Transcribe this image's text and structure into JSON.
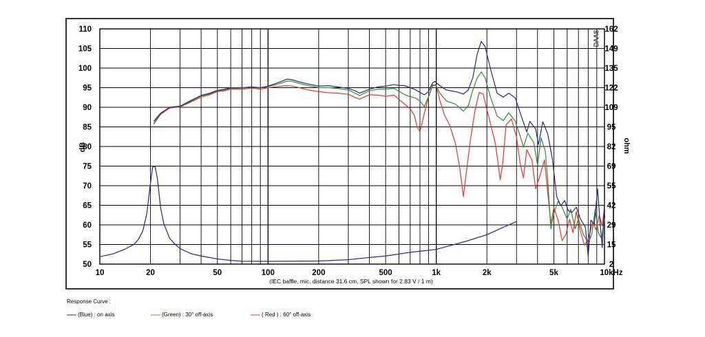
{
  "chart_data": {
    "type": "line",
    "title": "",
    "xlabel": "",
    "x_unit_label": "10kHz",
    "ylabel_left": "dB",
    "ylabel_right": "ohm",
    "caption": "(IEC baffle, mic. distance 31.6 cm, SPL shown for 2.83 V / 1 m)",
    "watermark": "DAAS",
    "x_scale": "log",
    "xlim": [
      10,
      10000
    ],
    "ylim_left": [
      50,
      110
    ],
    "ylim_right": [
      2,
      162
    ],
    "grid": true,
    "x_ticks": [
      {
        "value": 10,
        "label": "10"
      },
      {
        "value": 20,
        "label": "20"
      },
      {
        "value": 50,
        "label": "50"
      },
      {
        "value": 100,
        "label": "100"
      },
      {
        "value": 200,
        "label": "200"
      },
      {
        "value": 500,
        "label": "500"
      },
      {
        "value": 1000,
        "label": "1k"
      },
      {
        "value": 2000,
        "label": "2k"
      },
      {
        "value": 5000,
        "label": "5k"
      },
      {
        "value": 10000,
        "label": "10kHz"
      }
    ],
    "y_ticks_left": [
      50,
      55,
      60,
      65,
      70,
      75,
      80,
      85,
      90,
      95,
      100,
      105,
      110
    ],
    "y_ticks_right": [
      "2",
      "15",
      "29",
      "42",
      "55",
      "69",
      "82",
      "95",
      "109",
      "122",
      "135",
      "149",
      "162"
    ],
    "series": [
      {
        "name": "Blue",
        "color": "#2b2f7a",
        "points": [
          [
            21,
            86.5
          ],
          [
            23,
            88.5
          ],
          [
            26,
            90
          ],
          [
            30,
            90.3
          ],
          [
            35,
            91.8
          ],
          [
            40,
            93
          ],
          [
            45,
            93.6
          ],
          [
            50,
            94.3
          ],
          [
            55,
            94.6
          ],
          [
            60,
            95
          ],
          [
            70,
            95
          ],
          [
            80,
            95.2
          ],
          [
            90,
            95
          ],
          [
            100,
            95.4
          ],
          [
            110,
            96
          ],
          [
            120,
            96.6
          ],
          [
            130,
            97.2
          ],
          [
            140,
            97
          ],
          [
            150,
            96.6
          ],
          [
            170,
            96
          ],
          [
            200,
            95.4
          ],
          [
            230,
            95.5
          ],
          [
            260,
            95.2
          ],
          [
            300,
            94.8
          ],
          [
            330,
            94.2
          ],
          [
            350,
            93.6
          ],
          [
            400,
            94.6
          ],
          [
            450,
            95.2
          ],
          [
            500,
            95.4
          ],
          [
            560,
            95.8
          ],
          [
            600,
            95.6
          ],
          [
            650,
            95.5
          ],
          [
            700,
            95
          ],
          [
            750,
            94.5
          ],
          [
            800,
            93.8
          ],
          [
            850,
            93.2
          ],
          [
            900,
            94
          ],
          [
            950,
            96.2
          ],
          [
            980,
            96.6
          ],
          [
            1050,
            95.5
          ],
          [
            1150,
            94.4
          ],
          [
            1300,
            94
          ],
          [
            1450,
            93.4
          ],
          [
            1550,
            94.4
          ],
          [
            1650,
            97.6
          ],
          [
            1750,
            103.5
          ],
          [
            1850,
            106.8
          ],
          [
            1950,
            105.5
          ],
          [
            2100,
            99.8
          ],
          [
            2300,
            93.6
          ],
          [
            2500,
            92.6
          ],
          [
            2700,
            93.6
          ],
          [
            2950,
            92.4
          ],
          [
            3200,
            87.8
          ],
          [
            3450,
            83.7
          ],
          [
            3600,
            86.4
          ],
          [
            3900,
            84.5
          ],
          [
            4050,
            80.5
          ],
          [
            4300,
            86.3
          ],
          [
            4600,
            83.2
          ],
          [
            4900,
            76.8
          ],
          [
            5200,
            67.2
          ],
          [
            5500,
            64.9
          ],
          [
            5800,
            66.2
          ],
          [
            6100,
            63.6
          ],
          [
            6400,
            63.2
          ],
          [
            6800,
            64.5
          ],
          [
            7200,
            61.5
          ],
          [
            7700,
            59.4
          ],
          [
            8000,
            52
          ],
          [
            8300,
            61.2
          ],
          [
            8700,
            60.2
          ],
          [
            9100,
            69.2
          ],
          [
            9400,
            61
          ],
          [
            9700,
            54.2
          ],
          [
            10000,
            66
          ]
        ]
      },
      {
        "name": "Green",
        "color": "#3d8a3a",
        "points": [
          [
            21,
            86
          ],
          [
            23,
            88.4
          ],
          [
            26,
            90
          ],
          [
            30,
            90.2
          ],
          [
            35,
            91.6
          ],
          [
            40,
            92.9
          ],
          [
            45,
            93.4
          ],
          [
            50,
            94.2
          ],
          [
            55,
            94.4
          ],
          [
            60,
            94.8
          ],
          [
            70,
            94.9
          ],
          [
            80,
            95.1
          ],
          [
            90,
            94.9
          ],
          [
            100,
            95.3
          ],
          [
            110,
            95.7
          ],
          [
            120,
            96.2
          ],
          [
            130,
            96.7
          ],
          [
            140,
            96.6
          ],
          [
            150,
            96.2
          ],
          [
            170,
            95.6
          ],
          [
            200,
            95
          ],
          [
            230,
            95
          ],
          [
            260,
            94.8
          ],
          [
            300,
            94.4
          ],
          [
            330,
            93.6
          ],
          [
            350,
            93
          ],
          [
            400,
            94.2
          ],
          [
            450,
            94.6
          ],
          [
            500,
            94.6
          ],
          [
            560,
            94.8
          ],
          [
            600,
            94.1
          ],
          [
            650,
            93.2
          ],
          [
            700,
            92.7
          ],
          [
            750,
            92.4
          ],
          [
            800,
            91.6
          ],
          [
            850,
            90.2
          ],
          [
            900,
            92.8
          ],
          [
            950,
            95.4
          ],
          [
            990,
            95.8
          ],
          [
            1050,
            93.6
          ],
          [
            1150,
            91.6
          ],
          [
            1300,
            90.8
          ],
          [
            1450,
            89
          ],
          [
            1550,
            90.4
          ],
          [
            1650,
            94.4
          ],
          [
            1750,
            97.4
          ],
          [
            1850,
            99
          ],
          [
            1950,
            97.6
          ],
          [
            2100,
            92.6
          ],
          [
            2300,
            87.8
          ],
          [
            2500,
            86.6
          ],
          [
            2700,
            88.6
          ],
          [
            2950,
            86.4
          ],
          [
            3150,
            82.8
          ],
          [
            3300,
            79.8
          ],
          [
            3500,
            83.4
          ],
          [
            3800,
            81
          ],
          [
            4000,
            75.2
          ],
          [
            4200,
            82.2
          ],
          [
            4450,
            78.8
          ],
          [
            4600,
            71.5
          ],
          [
            4800,
            59
          ],
          [
            5000,
            63
          ],
          [
            5300,
            66
          ],
          [
            5600,
            64.5
          ],
          [
            6000,
            61.5
          ],
          [
            6300,
            64
          ],
          [
            6700,
            59
          ],
          [
            7000,
            61.5
          ],
          [
            7500,
            57.5
          ],
          [
            8000,
            55.5
          ],
          [
            8400,
            57.5
          ],
          [
            8800,
            64
          ],
          [
            9200,
            58
          ],
          [
            9600,
            56.5
          ],
          [
            10000,
            61.5
          ]
        ]
      },
      {
        "name": "Red",
        "color": "#e83a2e",
        "points": [
          [
            21,
            85.8
          ],
          [
            23,
            88.2
          ],
          [
            26,
            89.8
          ],
          [
            30,
            90.1
          ],
          [
            35,
            91.4
          ],
          [
            40,
            92.6
          ],
          [
            45,
            93.2
          ],
          [
            50,
            94
          ],
          [
            55,
            94.2
          ],
          [
            60,
            94.6
          ],
          [
            70,
            94.6
          ],
          [
            80,
            94.9
          ],
          [
            90,
            94.6
          ],
          [
            100,
            95
          ],
          [
            110,
            95.2
          ],
          [
            120,
            95.4
          ],
          [
            130,
            95.5
          ],
          [
            140,
            95.4
          ],
          [
            150,
            95.1
          ],
          [
            170,
            94.5
          ],
          [
            200,
            94
          ],
          [
            230,
            93.7
          ],
          [
            260,
            93.6
          ],
          [
            300,
            93.3
          ],
          [
            330,
            92.5
          ],
          [
            350,
            92.1
          ],
          [
            400,
            93.2
          ],
          [
            450,
            93.1
          ],
          [
            500,
            92.8
          ],
          [
            560,
            93.1
          ],
          [
            600,
            92
          ],
          [
            650,
            90.8
          ],
          [
            700,
            89.6
          ],
          [
            740,
            88
          ],
          [
            770,
            85
          ],
          [
            800,
            83.8
          ],
          [
            850,
            88.5
          ],
          [
            900,
            92.6
          ],
          [
            950,
            95.8
          ],
          [
            1000,
            95.4
          ],
          [
            1050,
            91.8
          ],
          [
            1120,
            88
          ],
          [
            1200,
            85.5
          ],
          [
            1300,
            80.8
          ],
          [
            1380,
            74.5
          ],
          [
            1450,
            67.2
          ],
          [
            1500,
            72.5
          ],
          [
            1600,
            82
          ],
          [
            1700,
            89.2
          ],
          [
            1800,
            93.8
          ],
          [
            1900,
            93.4
          ],
          [
            2000,
            89.4
          ],
          [
            2100,
            85.8
          ],
          [
            2250,
            80.6
          ],
          [
            2400,
            71.5
          ],
          [
            2480,
            75.5
          ],
          [
            2600,
            85.5
          ],
          [
            2800,
            87
          ],
          [
            3000,
            82.4
          ],
          [
            3150,
            75.8
          ],
          [
            3300,
            72
          ],
          [
            3450,
            79.2
          ],
          [
            3700,
            76.6
          ],
          [
            3900,
            69.2
          ],
          [
            4100,
            72
          ],
          [
            4400,
            76.6
          ],
          [
            4600,
            68.2
          ],
          [
            4800,
            60.4
          ],
          [
            5000,
            64.4
          ],
          [
            5300,
            61.2
          ],
          [
            5600,
            56
          ],
          [
            5900,
            57.6
          ],
          [
            6200,
            61.4
          ],
          [
            6500,
            58
          ],
          [
            6800,
            63.4
          ],
          [
            7200,
            58.4
          ],
          [
            7600,
            54.8
          ],
          [
            8000,
            56.4
          ],
          [
            8500,
            60.6
          ],
          [
            8900,
            58.8
          ],
          [
            9300,
            62.4
          ],
          [
            9700,
            59.8
          ],
          [
            10000,
            64.4
          ]
        ]
      },
      {
        "name": "Impedance",
        "color": "#2b2f7a",
        "axis": "right",
        "points": [
          [
            10,
            7
          ],
          [
            12,
            9
          ],
          [
            14,
            12
          ],
          [
            16,
            15.5
          ],
          [
            17,
            19
          ],
          [
            18,
            24.5
          ],
          [
            19,
            36
          ],
          [
            20,
            57
          ],
          [
            20.6,
            68
          ],
          [
            21.3,
            68.5
          ],
          [
            22,
            60
          ],
          [
            23,
            40
          ],
          [
            24,
            29.5
          ],
          [
            26,
            19.5
          ],
          [
            28,
            15.5
          ],
          [
            30,
            12.5
          ],
          [
            35,
            9
          ],
          [
            40,
            7.5
          ],
          [
            50,
            5.5
          ],
          [
            60,
            4.5
          ],
          [
            70,
            4
          ],
          [
            100,
            3.9
          ],
          [
            200,
            4.1
          ],
          [
            300,
            5
          ],
          [
            400,
            6.5
          ],
          [
            500,
            7.5
          ],
          [
            700,
            10
          ],
          [
            1000,
            12
          ],
          [
            1500,
            17.5
          ],
          [
            2000,
            22
          ],
          [
            2500,
            27
          ],
          [
            3000,
            31
          ]
        ]
      }
    ],
    "legend": {
      "title": "Response Curve :",
      "entries": [
        {
          "series": "Blue",
          "label": "(Blue)  : on axis",
          "color": "#2b2f7a"
        },
        {
          "series": "Green",
          "label": "(Green) : 30° off-axis",
          "color": "#6b9a3a"
        },
        {
          "series": "Red",
          "label": "( Red ) : 60° off-axis",
          "color": "#e83a2e"
        }
      ]
    }
  }
}
